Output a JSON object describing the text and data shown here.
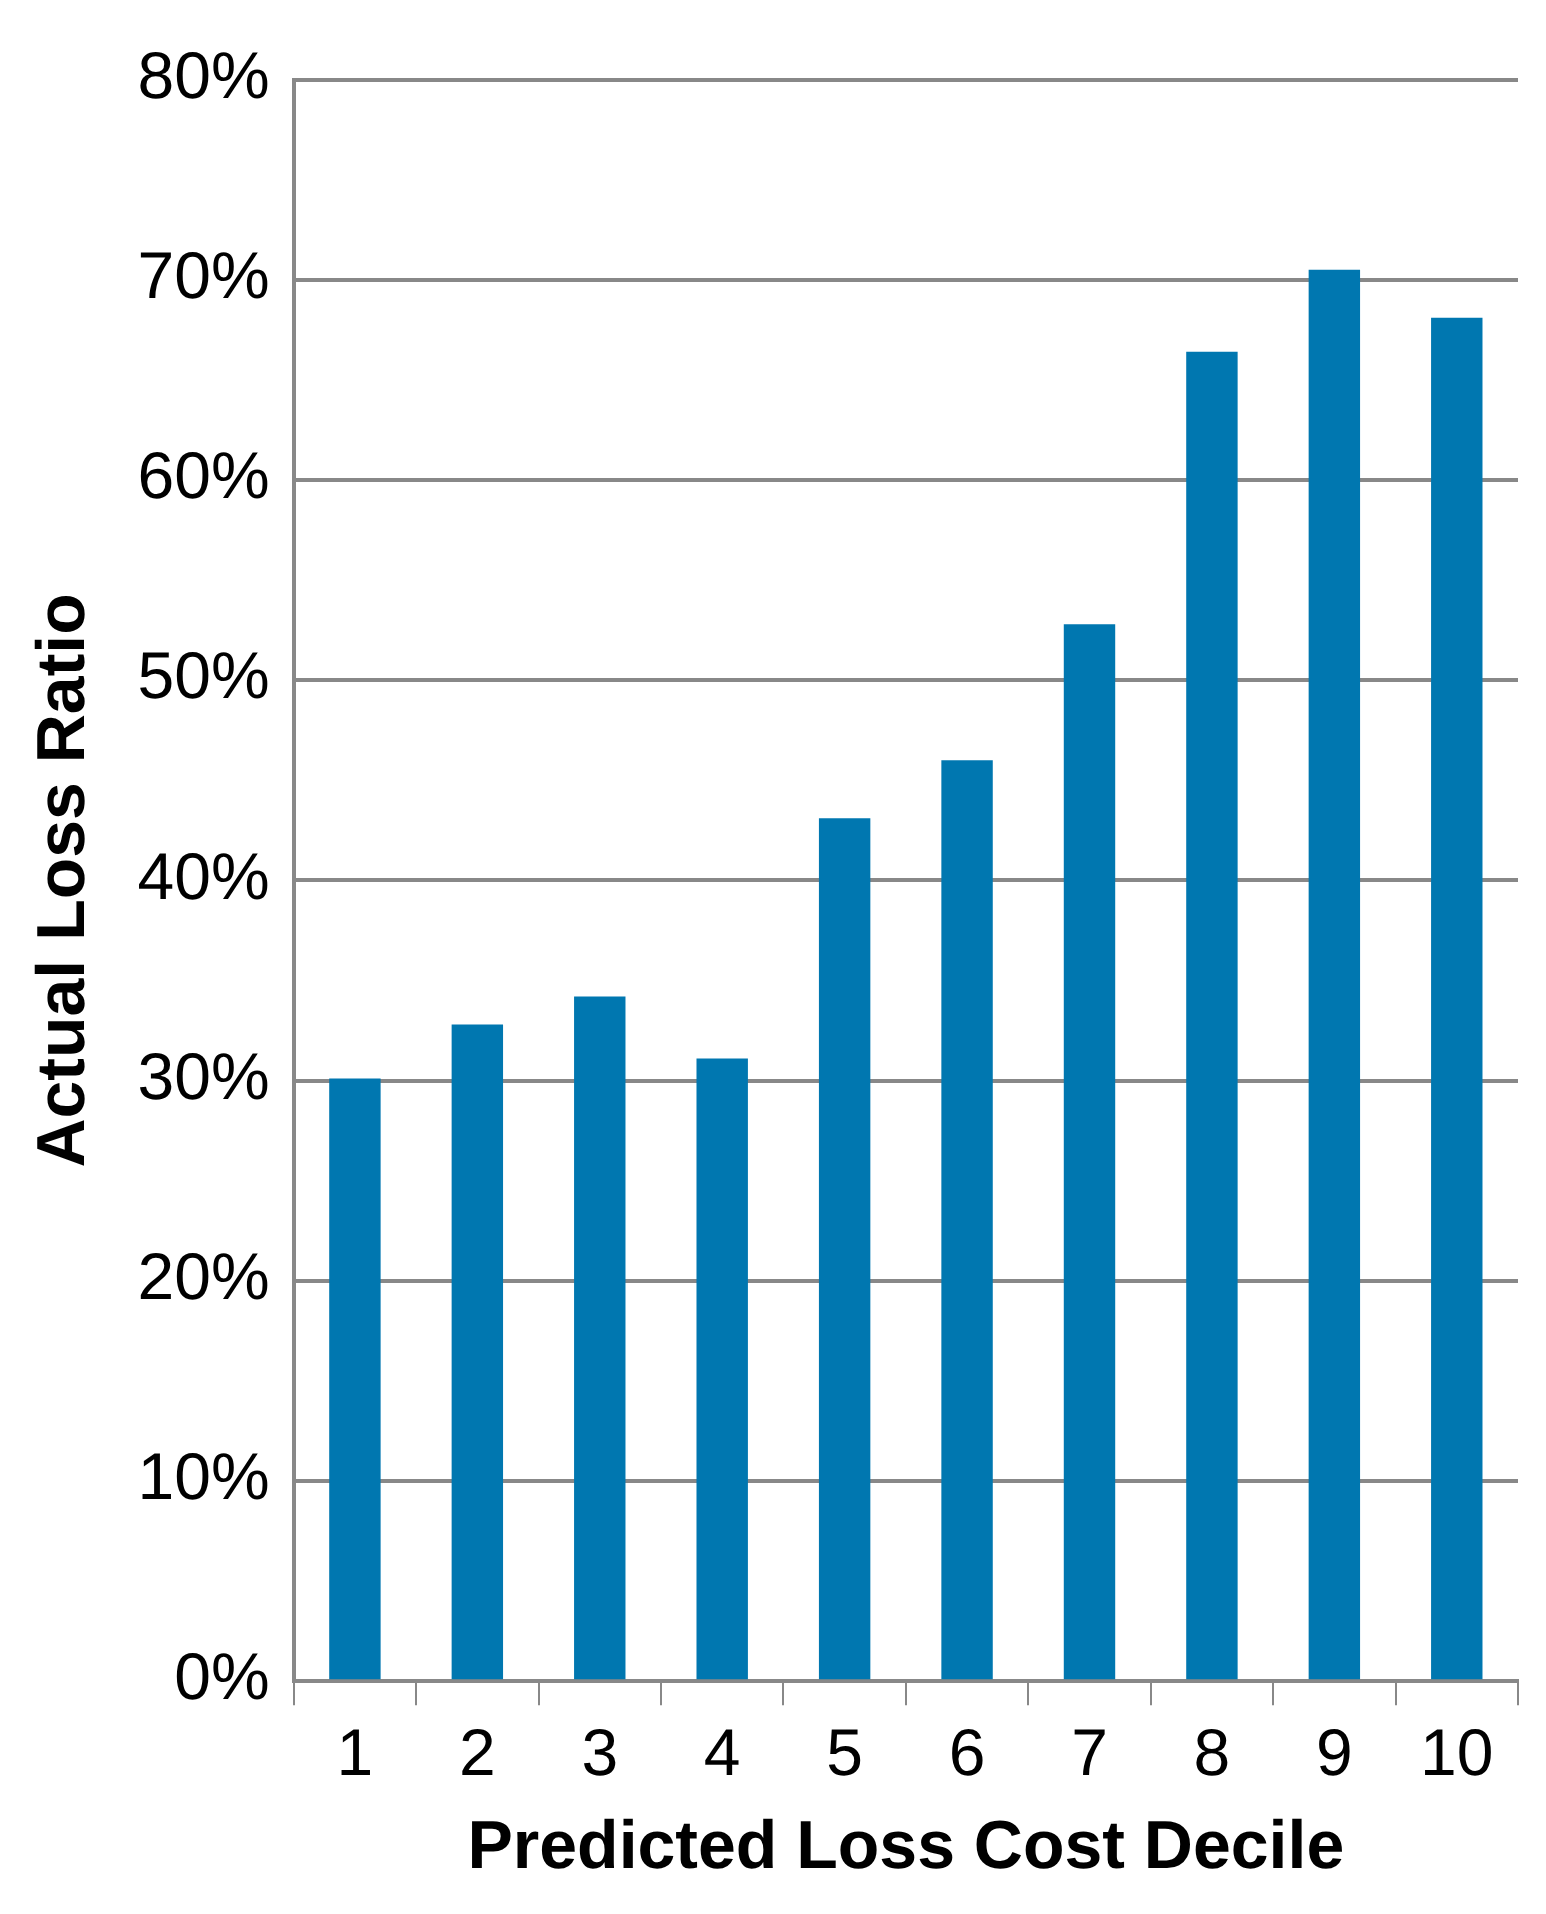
{
  "chart_data": {
    "type": "bar",
    "xlabel": "Predicted Loss Cost Decile",
    "ylabel": "Actual Loss Ratio",
    "categories": [
      "1",
      "2",
      "3",
      "4",
      "5",
      "6",
      "7",
      "8",
      "9",
      "10"
    ],
    "values": [
      30.1,
      32.8,
      34.2,
      31.1,
      43.1,
      46.0,
      52.8,
      66.4,
      70.5,
      68.1
    ],
    "color": "#0077b0",
    "ylim": [
      0,
      80
    ],
    "yticks": [
      {
        "value": 0,
        "label": "0%"
      },
      {
        "value": 10,
        "label": "10%"
      },
      {
        "value": 20,
        "label": "20%"
      },
      {
        "value": 30,
        "label": "30%"
      },
      {
        "value": 40,
        "label": "40%"
      },
      {
        "value": 50,
        "label": "50%"
      },
      {
        "value": 60,
        "label": "60%"
      },
      {
        "value": 70,
        "label": "70%"
      },
      {
        "value": 80,
        "label": "80%"
      }
    ],
    "grid": "y",
    "legend": false
  }
}
